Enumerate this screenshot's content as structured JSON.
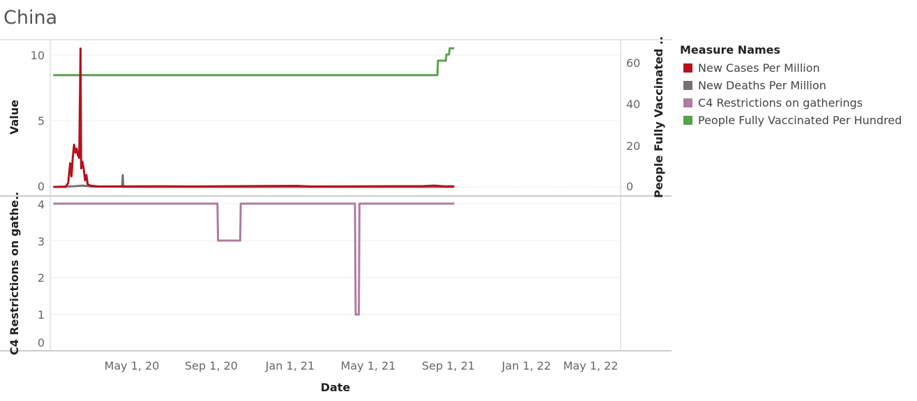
{
  "title": "China",
  "legend": {
    "title": "Measure Names",
    "items": [
      {
        "label": "New Cases Per Million",
        "color": "#b5121b"
      },
      {
        "label": "New Deaths Per Million",
        "color": "#79706e"
      },
      {
        "label": "C4 Restrictions on gatherings",
        "color": "#b07aa1"
      },
      {
        "label": "People Fully Vaccinated Per Hundred",
        "color": "#59a14f"
      }
    ]
  },
  "chart_data": {
    "type": "line",
    "xlabel": "Date",
    "x_ticks": [
      "May 1, 20",
      "Sep 1, 20",
      "Jan 1, 21",
      "May 1, 21",
      "Sep 1, 21",
      "Jan 1, 22",
      "May 1, 22"
    ],
    "top_panel": {
      "ylabel_left": "Value",
      "ylabel_right": "People Fully Vaccinated ..",
      "left_ticks": [
        "10",
        "5",
        "0"
      ],
      "right_ticks": [
        "60",
        "40",
        "20",
        "0"
      ],
      "left_ylim": [
        0,
        10.5
      ],
      "right_ylim": [
        0,
        67
      ],
      "series": [
        {
          "name": "New Cases Per Million",
          "color": "#b5121b",
          "axis": "left",
          "points": [
            [
              "2020-01-01",
              0.0
            ],
            [
              "2020-01-20",
              0.0
            ],
            [
              "2020-01-24",
              0.3
            ],
            [
              "2020-01-27",
              1.8
            ],
            [
              "2020-01-29",
              0.8
            ],
            [
              "2020-01-31",
              2.2
            ],
            [
              "2020-02-02",
              3.2
            ],
            [
              "2020-02-04",
              2.6
            ],
            [
              "2020-02-06",
              2.9
            ],
            [
              "2020-02-08",
              2.4
            ],
            [
              "2020-02-10",
              2.2
            ],
            [
              "2020-02-12",
              10.5
            ],
            [
              "2020-02-13",
              1.4
            ],
            [
              "2020-02-15",
              1.9
            ],
            [
              "2020-02-17",
              1.3
            ],
            [
              "2020-02-19",
              0.5
            ],
            [
              "2020-02-21",
              0.9
            ],
            [
              "2020-02-23",
              0.2
            ],
            [
              "2020-02-27",
              0.1
            ],
            [
              "2020-03-10",
              0.03
            ],
            [
              "2020-06-15",
              0.05
            ],
            [
              "2020-08-01",
              0.03
            ],
            [
              "2021-01-10",
              0.08
            ],
            [
              "2021-02-01",
              0.03
            ],
            [
              "2021-07-25",
              0.06
            ],
            [
              "2021-08-10",
              0.1
            ],
            [
              "2021-08-25",
              0.04
            ],
            [
              "2021-09-10",
              0.05
            ]
          ]
        },
        {
          "name": "New Deaths Per Million",
          "color": "#79706e",
          "axis": "left",
          "points": [
            [
              "2020-01-01",
              0.0
            ],
            [
              "2020-02-01",
              0.05
            ],
            [
              "2020-02-15",
              0.1
            ],
            [
              "2020-03-01",
              0.02
            ],
            [
              "2020-04-16",
              0.02
            ],
            [
              "2020-04-17",
              0.9
            ],
            [
              "2020-04-18",
              0.0
            ],
            [
              "2021-09-10",
              0.0
            ]
          ]
        },
        {
          "name": "People Fully Vaccinated Per Hundred",
          "color": "#59a14f",
          "axis": "right",
          "points": [
            [
              "2020-01-01",
              54
            ],
            [
              "2021-08-15",
              54
            ],
            [
              "2021-08-16",
              61
            ],
            [
              "2021-08-28",
              61
            ],
            [
              "2021-08-29",
              64
            ],
            [
              "2021-09-02",
              64
            ],
            [
              "2021-09-03",
              67
            ],
            [
              "2021-09-10",
              67
            ]
          ]
        }
      ]
    },
    "bottom_panel": {
      "ylabel": "C4 Restrictions on gathe..",
      "ticks": [
        "4",
        "3",
        "2",
        "1",
        "0"
      ],
      "ylim": [
        0,
        4
      ],
      "series": [
        {
          "name": "C4 Restrictions on gatherings",
          "color": "#b07aa1",
          "points": [
            [
              "2020-01-01",
              4
            ],
            [
              "2020-09-10",
              4
            ],
            [
              "2020-09-11",
              3
            ],
            [
              "2020-10-15",
              3
            ],
            [
              "2020-10-16",
              4
            ],
            [
              "2021-04-10",
              4
            ],
            [
              "2021-04-11",
              1
            ],
            [
              "2021-04-16",
              1
            ],
            [
              "2021-04-17",
              4
            ],
            [
              "2021-09-10",
              4
            ]
          ]
        }
      ]
    }
  }
}
